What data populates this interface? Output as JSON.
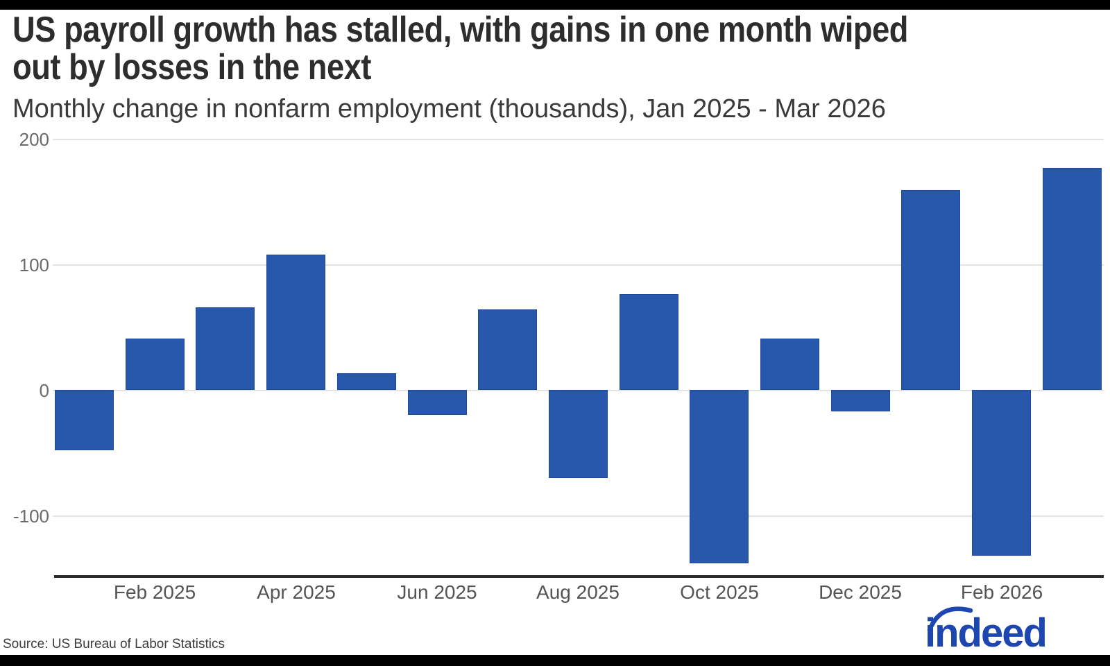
{
  "header": {
    "title_line1": "US payroll growth has stalled, with gains in one month wiped",
    "title_line2": "out by losses in the next",
    "subtitle": "Monthly change in nonfarm employment (thousands), Jan 2025 - Mar 2026"
  },
  "footer": {
    "source": "Source: US Bureau of Labor Statistics",
    "logo_text": "indeed"
  },
  "chart_data": {
    "type": "bar",
    "title": "US payroll growth has stalled, with gains in one month wiped out by losses in the next",
    "subtitle": "Monthly change in nonfarm employment (thousands), Jan 2025 - Mar 2026",
    "categories": [
      "Jan 2025",
      "Feb 2025",
      "Mar 2025",
      "Apr 2025",
      "May 2025",
      "Jun 2025",
      "Jul 2025",
      "Aug 2025",
      "Sep 2025",
      "Oct 2025",
      "Nov 2025",
      "Dec 2025",
      "Jan 2026",
      "Feb 2026",
      "Mar 2026"
    ],
    "values": [
      -48,
      41,
      66,
      108,
      13,
      -20,
      64,
      -70,
      76,
      -138,
      41,
      -17,
      159,
      -132,
      177
    ],
    "x_tick_labels": [
      "Feb 2025",
      "Apr 2025",
      "Jun 2025",
      "Aug 2025",
      "Oct 2025",
      "Dec 2025",
      "Feb 2026"
    ],
    "y_ticks": [
      200,
      100,
      0,
      -100
    ],
    "ylim": [
      -150,
      200
    ],
    "xlabel": "",
    "ylabel": "",
    "grid": true,
    "legend_position": "none",
    "bar_color": "#2758ac",
    "bar_border_color": "#1c4a9e",
    "axis_color": "#2b2b2b",
    "grid_color": "#e4e4e4",
    "logo_color": "#1e46b0"
  }
}
